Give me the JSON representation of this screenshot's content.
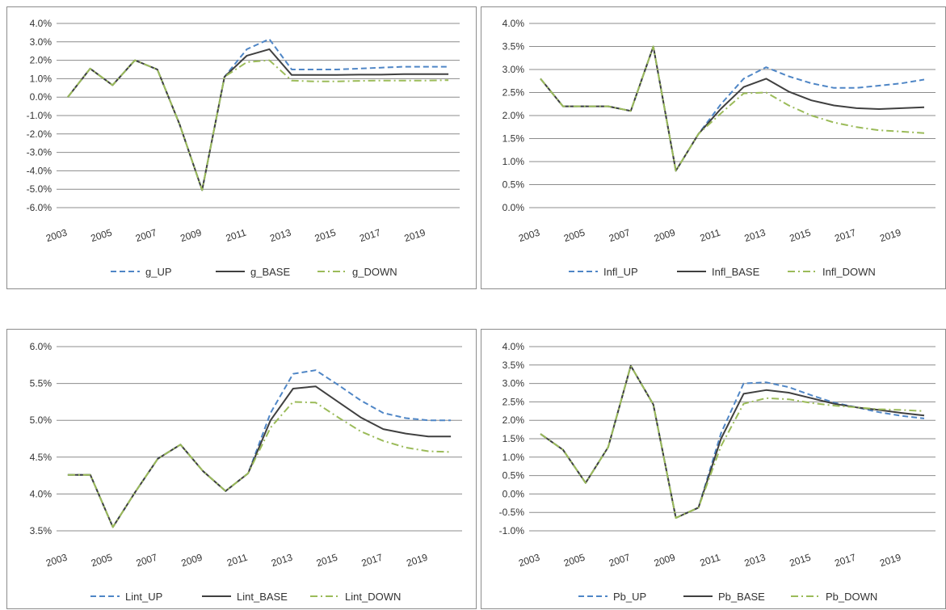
{
  "chart_data": [
    {
      "type": "line",
      "x": [
        "2003",
        "2004",
        "2005",
        "2006",
        "2007",
        "2008",
        "2009",
        "2010",
        "2011",
        "2012",
        "2013",
        "2014",
        "2015",
        "2016",
        "2017",
        "2018",
        "2019",
        "2020"
      ],
      "x_tick_labels": [
        "2003",
        "2005",
        "2007",
        "2009",
        "2011",
        "2013",
        "2015",
        "2017",
        "2019"
      ],
      "ylim": [
        -6.0,
        4.0
      ],
      "y_tick_labels": [
        "4.0%",
        "3.0%",
        "2.0%",
        "1.0%",
        "0.0%",
        "-1.0%",
        "-2.0%",
        "-3.0%",
        "-4.0%",
        "-5.0%",
        "-6.0%"
      ],
      "grid": true,
      "legend_position": "bottom",
      "series": [
        {
          "name": "g_UP",
          "style": "dashed",
          "color": "#4f86c6",
          "values": [
            0.0,
            1.55,
            0.65,
            2.0,
            1.5,
            -1.5,
            -5.05,
            1.1,
            2.6,
            3.15,
            1.5,
            1.5,
            1.5,
            1.55,
            1.6,
            1.65,
            1.65,
            1.65
          ]
        },
        {
          "name": "g_BASE",
          "style": "solid",
          "color": "#404040",
          "values": [
            0.0,
            1.55,
            0.65,
            2.0,
            1.5,
            -1.5,
            -5.05,
            1.1,
            2.25,
            2.6,
            1.2,
            1.2,
            1.2,
            1.22,
            1.22,
            1.25,
            1.25,
            1.25
          ]
        },
        {
          "name": "g_DOWN",
          "style": "dashdot",
          "color": "#9bbb59",
          "values": [
            0.0,
            1.55,
            0.65,
            2.0,
            1.5,
            -1.5,
            -5.05,
            1.1,
            1.9,
            2.0,
            0.9,
            0.85,
            0.85,
            0.88,
            0.9,
            0.9,
            0.9,
            0.92
          ]
        }
      ]
    },
    {
      "type": "line",
      "x": [
        "2003",
        "2004",
        "2005",
        "2006",
        "2007",
        "2008",
        "2009",
        "2010",
        "2011",
        "2012",
        "2013",
        "2014",
        "2015",
        "2016",
        "2017",
        "2018",
        "2019",
        "2020"
      ],
      "x_tick_labels": [
        "2003",
        "2005",
        "2007",
        "2009",
        "2011",
        "2013",
        "2015",
        "2017",
        "2019"
      ],
      "ylim": [
        0.0,
        4.0
      ],
      "y_tick_labels": [
        "4.0%",
        "3.5%",
        "3.0%",
        "2.5%",
        "2.0%",
        "1.5%",
        "1.0%",
        "0.5%",
        "0.0%"
      ],
      "grid": true,
      "legend_position": "bottom",
      "series": [
        {
          "name": "Infl_UP",
          "style": "dashed",
          "color": "#4f86c6",
          "values": [
            2.8,
            2.2,
            2.2,
            2.2,
            2.1,
            3.5,
            0.8,
            1.6,
            2.25,
            2.8,
            3.05,
            2.85,
            2.7,
            2.6,
            2.6,
            2.65,
            2.7,
            2.78
          ]
        },
        {
          "name": "Infl_BASE",
          "style": "solid",
          "color": "#404040",
          "values": [
            2.8,
            2.2,
            2.2,
            2.2,
            2.1,
            3.5,
            0.8,
            1.6,
            2.15,
            2.62,
            2.8,
            2.52,
            2.33,
            2.22,
            2.16,
            2.14,
            2.16,
            2.18
          ]
        },
        {
          "name": "Infl_DOWN",
          "style": "dashdot",
          "color": "#9bbb59",
          "values": [
            2.8,
            2.2,
            2.2,
            2.2,
            2.1,
            3.5,
            0.8,
            1.6,
            2.05,
            2.48,
            2.5,
            2.22,
            2.0,
            1.85,
            1.75,
            1.68,
            1.65,
            1.62
          ]
        }
      ]
    },
    {
      "type": "line",
      "x": [
        "2003",
        "2004",
        "2005",
        "2006",
        "2007",
        "2008",
        "2009",
        "2010",
        "2011",
        "2012",
        "2013",
        "2014",
        "2015",
        "2016",
        "2017",
        "2018",
        "2019",
        "2020"
      ],
      "x_tick_labels": [
        "2003",
        "2005",
        "2007",
        "2009",
        "2011",
        "2013",
        "2015",
        "2017",
        "2019"
      ],
      "ylim": [
        3.5,
        6.0
      ],
      "y_tick_labels": [
        "6.0%",
        "5.5%",
        "5.0%",
        "4.5%",
        "4.0%",
        "3.5%"
      ],
      "grid": true,
      "legend_position": "bottom",
      "series": [
        {
          "name": "Lint_UP",
          "style": "dashed",
          "color": "#4f86c6",
          "values": [
            4.26,
            4.26,
            3.55,
            4.03,
            4.48,
            4.67,
            4.31,
            4.04,
            4.28,
            5.1,
            5.63,
            5.68,
            5.48,
            5.27,
            5.1,
            5.03,
            5.0,
            5.0
          ]
        },
        {
          "name": "Lint_BASE",
          "style": "solid",
          "color": "#404040",
          "values": [
            4.26,
            4.26,
            3.55,
            4.03,
            4.48,
            4.67,
            4.31,
            4.04,
            4.28,
            5.0,
            5.43,
            5.46,
            5.25,
            5.04,
            4.88,
            4.82,
            4.78,
            4.78
          ]
        },
        {
          "name": "Lint_DOWN",
          "style": "dashdot",
          "color": "#9bbb59",
          "values": [
            4.26,
            4.26,
            3.55,
            4.03,
            4.48,
            4.67,
            4.31,
            4.04,
            4.28,
            4.9,
            5.25,
            5.24,
            5.04,
            4.85,
            4.72,
            4.63,
            4.58,
            4.57
          ]
        }
      ]
    },
    {
      "type": "line",
      "x": [
        "2003",
        "2004",
        "2005",
        "2006",
        "2007",
        "2008",
        "2009",
        "2010",
        "2011",
        "2012",
        "2013",
        "2014",
        "2015",
        "2016",
        "2017",
        "2018",
        "2019",
        "2020"
      ],
      "x_tick_labels": [
        "2003",
        "2005",
        "2007",
        "2009",
        "2011",
        "2013",
        "2015",
        "2017",
        "2019"
      ],
      "ylim": [
        -1.0,
        4.0
      ],
      "y_tick_labels": [
        "4.0%",
        "3.5%",
        "3.0%",
        "2.5%",
        "2.0%",
        "1.5%",
        "1.0%",
        "0.5%",
        "0.0%",
        "-0.5%",
        "-1.0%"
      ],
      "grid": true,
      "legend_position": "bottom",
      "series": [
        {
          "name": "Pb_UP",
          "style": "dashed",
          "color": "#4f86c6",
          "values": [
            1.63,
            1.2,
            0.3,
            1.27,
            3.48,
            2.43,
            -0.65,
            -0.37,
            1.65,
            3.0,
            3.03,
            2.9,
            2.68,
            2.48,
            2.35,
            2.22,
            2.12,
            2.05
          ]
        },
        {
          "name": "Pb_BASE",
          "style": "solid",
          "color": "#404040",
          "values": [
            1.63,
            1.2,
            0.3,
            1.27,
            3.48,
            2.43,
            -0.65,
            -0.37,
            1.5,
            2.72,
            2.82,
            2.75,
            2.6,
            2.45,
            2.35,
            2.28,
            2.2,
            2.13
          ]
        },
        {
          "name": "Pb_DOWN",
          "style": "dashdot",
          "color": "#9bbb59",
          "values": [
            1.63,
            1.2,
            0.3,
            1.27,
            3.48,
            2.43,
            -0.65,
            -0.37,
            1.3,
            2.45,
            2.6,
            2.57,
            2.47,
            2.4,
            2.35,
            2.3,
            2.28,
            2.25
          ]
        }
      ]
    }
  ]
}
